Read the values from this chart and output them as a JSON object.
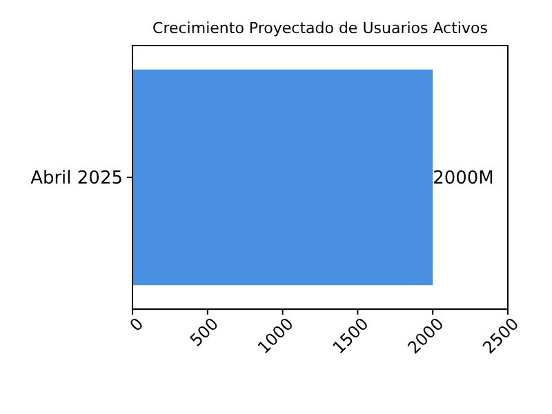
{
  "chart_data": {
    "type": "bar",
    "orientation": "horizontal",
    "title": "Crecimiento Proyectado de Usuarios Activos",
    "categories": [
      "Abril 2025"
    ],
    "values": [
      2000
    ],
    "value_labels": [
      "2000M"
    ],
    "color": "#4a90e2",
    "xlim": [
      0,
      2500
    ],
    "xticks": [
      0,
      500,
      1000,
      1500,
      2000,
      2500
    ],
    "grid": false
  }
}
